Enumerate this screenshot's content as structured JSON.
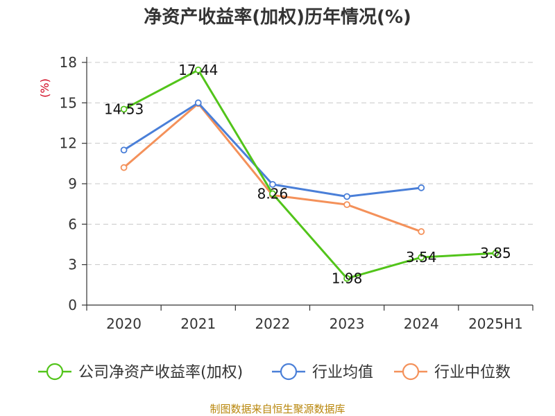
{
  "title": "净资产收益率(加权)历年情况(%)",
  "unit_label": "(%)",
  "source": "制图数据来自恒生聚源数据库",
  "chart_data": {
    "type": "line",
    "categories": [
      "2020",
      "2021",
      "2022",
      "2023",
      "2024",
      "2025H1"
    ],
    "ylim": [
      0,
      18
    ],
    "yticks": [
      0,
      3,
      6,
      9,
      12,
      15,
      18
    ],
    "grid": true,
    "legend_position": "bottom",
    "series": [
      {
        "name": "公司净资产收益率(加权)",
        "color": "#52c41a",
        "values": [
          14.53,
          17.44,
          8.26,
          1.98,
          3.54,
          3.85
        ],
        "labels": [
          "14.53",
          "17.44",
          "8.26",
          "1.98",
          "3.54",
          "3.85"
        ]
      },
      {
        "name": "行业均值",
        "color": "#4a7fd8",
        "values": [
          11.5,
          15.0,
          8.95,
          8.05,
          8.7,
          null
        ]
      },
      {
        "name": "行业中位数",
        "color": "#f4915a",
        "values": [
          10.2,
          14.95,
          8.15,
          7.45,
          5.45,
          null
        ]
      }
    ]
  }
}
